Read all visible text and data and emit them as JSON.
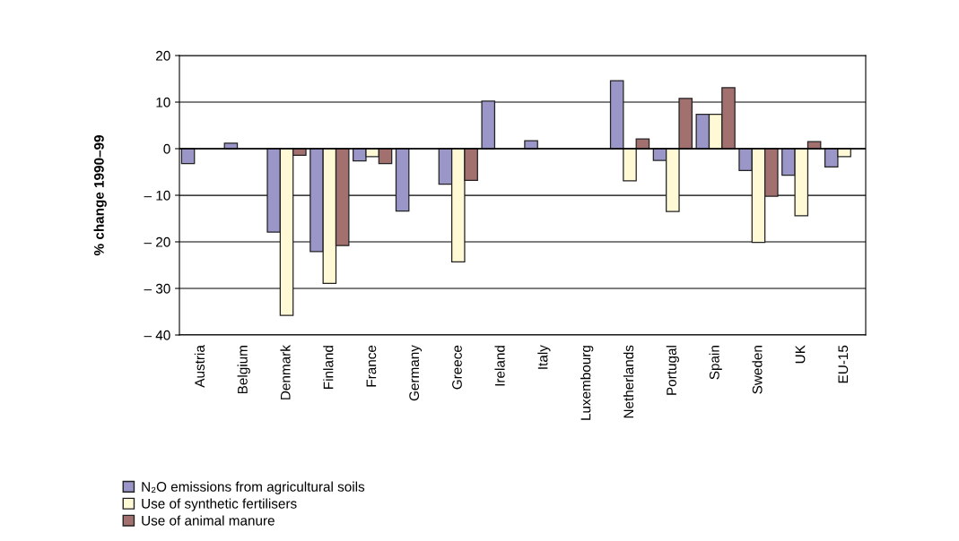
{
  "chart_data": {
    "type": "bar",
    "ylabel": "% change 1990–99",
    "categories": [
      "Austria",
      "Belgium",
      "Denmark",
      "Finland",
      "France",
      "Germany",
      "Greece",
      "Ireland",
      "Italy",
      "Luxembourg",
      "Netherlands",
      "Portugal",
      "Spain",
      "Sweden",
      "UK",
      "EU-15"
    ],
    "series": [
      {
        "name": "N₂O emissions from agricultural soils",
        "color": "#9a96c8",
        "values": [
          -3.2,
          1.2,
          -17.9,
          -22.1,
          -2.6,
          -13.4,
          -7.6,
          10.2,
          1.7,
          null,
          14.6,
          -2.5,
          7.4,
          -4.7,
          -5.7,
          -3.9
        ]
      },
      {
        "name": "Use of synthetic fertilisers",
        "color": "#fff9d6",
        "values": [
          null,
          null,
          -35.8,
          -28.9,
          -1.7,
          null,
          -24.3,
          null,
          null,
          null,
          -6.9,
          -13.5,
          7.4,
          -20.1,
          -14.4,
          -1.7
        ]
      },
      {
        "name": "Use of animal manure",
        "color": "#a37070",
        "values": [
          null,
          null,
          -1.4,
          -20.8,
          -3.2,
          null,
          -6.8,
          null,
          null,
          null,
          2.1,
          10.8,
          13.1,
          -10.2,
          1.5,
          null
        ]
      }
    ],
    "ylim": [
      -40,
      20
    ],
    "yticks": [
      {
        "value": -40,
        "label": "– 40"
      },
      {
        "value": -30,
        "label": "– 30"
      },
      {
        "value": -20,
        "label": "– 20"
      },
      {
        "value": -10,
        "label": "– 10"
      },
      0,
      10,
      20
    ],
    "grid": "y",
    "legend": "bottom left"
  }
}
